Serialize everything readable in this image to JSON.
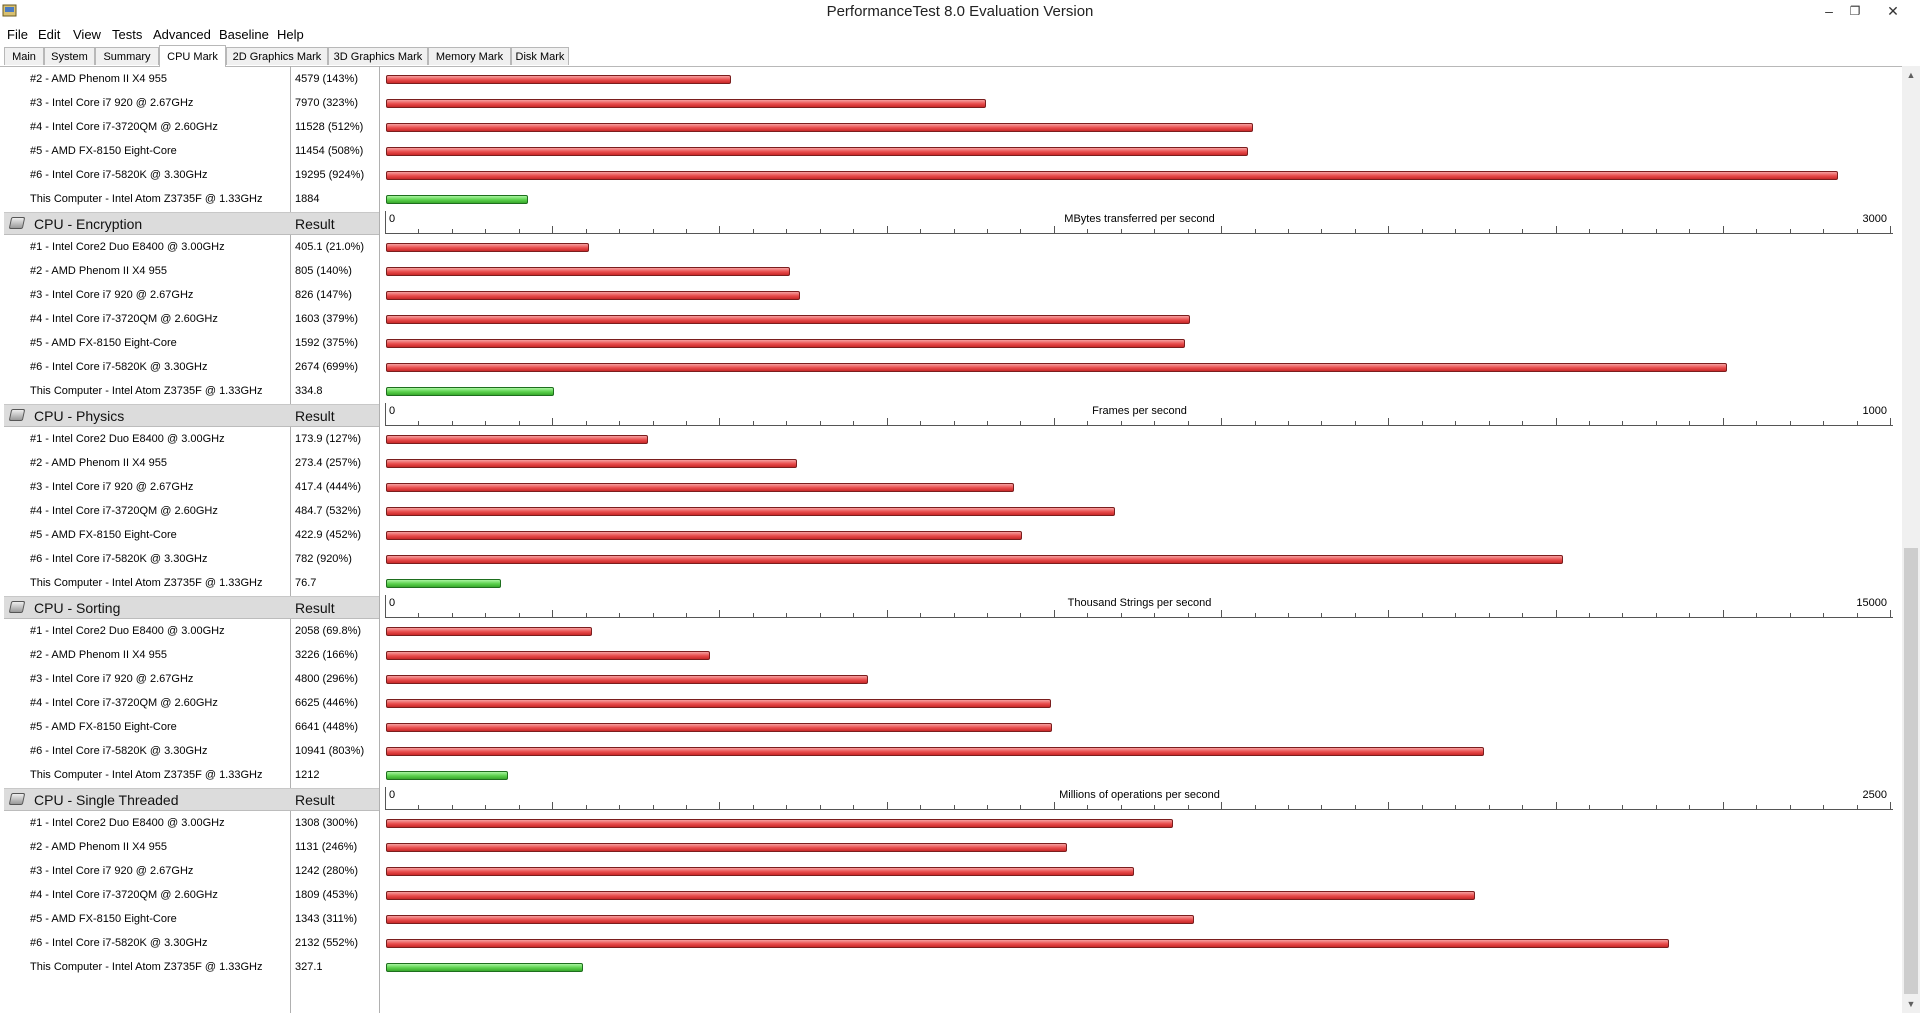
{
  "window": {
    "title": "PerformanceTest 8.0 Evaluation Version",
    "minimize": "–",
    "restore": "❐",
    "close": "✕"
  },
  "menu": [
    "File",
    "Edit",
    "View",
    "Tests",
    "Advanced",
    "Baseline",
    "Help"
  ],
  "tabs": [
    "Main",
    "System",
    "Summary",
    "CPU Mark",
    "2D Graphics Mark",
    "3D Graphics Mark",
    "Memory Mark",
    "Disk Mark"
  ],
  "active_tab": "CPU Mark",
  "colors": {
    "comparison_bar": "#e84b4b",
    "this_computer_bar": "#5ad04b",
    "section_header": "#dcdcdc"
  },
  "top_rows": [
    {
      "name": "#2 - AMD Phenom II X4 955",
      "result": "4579 (143%)",
      "value": 4579
    },
    {
      "name": "#3 - Intel Core i7 920 @ 2.67GHz",
      "result": "7970 (323%)",
      "value": 7970
    },
    {
      "name": "#4 - Intel Core i7-3720QM @ 2.60GHz",
      "result": "11528 (512%)",
      "value": 11528
    },
    {
      "name": "#5 - AMD FX-8150 Eight-Core",
      "result": "11454 (508%)",
      "value": 11454
    },
    {
      "name": "#6 - Intel Core i7-5820K @ 3.30GHz",
      "result": "19295 (924%)",
      "value": 19295
    },
    {
      "name": "This Computer - Intel Atom Z3735F @ 1.33GHz",
      "result": "1884",
      "value": 1884,
      "self": true
    }
  ],
  "top_scale_max": 20000,
  "sections": [
    {
      "title": "CPU - Encryption",
      "result_label": "Result",
      "axis": {
        "min": "0",
        "max": "3000",
        "unit": "MBytes transferred per second"
      },
      "scale_max": 3000,
      "rows": [
        {
          "name": "#1 - Intel Core2 Duo E8400 @ 3.00GHz",
          "result": "405.1 (21.0%)",
          "value": 405.1
        },
        {
          "name": "#2 - AMD Phenom II X4 955",
          "result": "805 (140%)",
          "value": 805
        },
        {
          "name": "#3 - Intel Core i7 920 @ 2.67GHz",
          "result": "826 (147%)",
          "value": 826
        },
        {
          "name": "#4 - Intel Core i7-3720QM @ 2.60GHz",
          "result": "1603 (379%)",
          "value": 1603
        },
        {
          "name": "#5 - AMD FX-8150 Eight-Core",
          "result": "1592 (375%)",
          "value": 1592
        },
        {
          "name": "#6 - Intel Core i7-5820K @ 3.30GHz",
          "result": "2674 (699%)",
          "value": 2674
        },
        {
          "name": "This Computer - Intel Atom Z3735F @ 1.33GHz",
          "result": "334.8",
          "value": 334.8,
          "self": true
        }
      ]
    },
    {
      "title": "CPU - Physics",
      "result_label": "Result",
      "axis": {
        "min": "0",
        "max": "1000",
        "unit": "Frames per second"
      },
      "scale_max": 1000,
      "rows": [
        {
          "name": "#1 - Intel Core2 Duo E8400 @ 3.00GHz",
          "result": "173.9 (127%)",
          "value": 173.9
        },
        {
          "name": "#2 - AMD Phenom II X4 955",
          "result": "273.4 (257%)",
          "value": 273.4
        },
        {
          "name": "#3 - Intel Core i7 920 @ 2.67GHz",
          "result": "417.4 (444%)",
          "value": 417.4
        },
        {
          "name": "#4 - Intel Core i7-3720QM @ 2.60GHz",
          "result": "484.7 (532%)",
          "value": 484.7
        },
        {
          "name": "#5 - AMD FX-8150 Eight-Core",
          "result": "422.9 (452%)",
          "value": 422.9
        },
        {
          "name": "#6 - Intel Core i7-5820K @ 3.30GHz",
          "result": "782 (920%)",
          "value": 782
        },
        {
          "name": "This Computer - Intel Atom Z3735F @ 1.33GHz",
          "result": "76.7",
          "value": 76.7,
          "self": true
        }
      ]
    },
    {
      "title": "CPU - Sorting",
      "result_label": "Result",
      "axis": {
        "min": "0",
        "max": "15000",
        "unit": "Thousand Strings per second"
      },
      "scale_max": 15000,
      "rows": [
        {
          "name": "#1 - Intel Core2 Duo E8400 @ 3.00GHz",
          "result": "2058 (69.8%)",
          "value": 2058
        },
        {
          "name": "#2 - AMD Phenom II X4 955",
          "result": "3226 (166%)",
          "value": 3226
        },
        {
          "name": "#3 - Intel Core i7 920 @ 2.67GHz",
          "result": "4800 (296%)",
          "value": 4800
        },
        {
          "name": "#4 - Intel Core i7-3720QM @ 2.60GHz",
          "result": "6625 (446%)",
          "value": 6625
        },
        {
          "name": "#5 - AMD FX-8150 Eight-Core",
          "result": "6641 (448%)",
          "value": 6641
        },
        {
          "name": "#6 - Intel Core i7-5820K @ 3.30GHz",
          "result": "10941 (803%)",
          "value": 10941
        },
        {
          "name": "This Computer - Intel Atom Z3735F @ 1.33GHz",
          "result": "1212",
          "value": 1212,
          "self": true
        }
      ]
    },
    {
      "title": "CPU - Single Threaded",
      "result_label": "Result",
      "axis": {
        "min": "0",
        "max": "2500",
        "unit": "Millions of operations per second"
      },
      "scale_max": 2500,
      "rows": [
        {
          "name": "#1 - Intel Core2 Duo E8400 @ 3.00GHz",
          "result": "1308 (300%)",
          "value": 1308
        },
        {
          "name": "#2 - AMD Phenom II X4 955",
          "result": "1131 (246%)",
          "value": 1131
        },
        {
          "name": "#3 - Intel Core i7 920 @ 2.67GHz",
          "result": "1242 (280%)",
          "value": 1242
        },
        {
          "name": "#4 - Intel Core i7-3720QM @ 2.60GHz",
          "result": "1809 (453%)",
          "value": 1809
        },
        {
          "name": "#5 - AMD FX-8150 Eight-Core",
          "result": "1343 (311%)",
          "value": 1343
        },
        {
          "name": "#6 - Intel Core i7-5820K @ 3.30GHz",
          "result": "2132 (552%)",
          "value": 2132
        },
        {
          "name": "This Computer - Intel Atom Z3735F @ 1.33GHz",
          "result": "327.1",
          "value": 327.1,
          "self": true
        }
      ]
    }
  ],
  "scroll": {
    "up_icon": "▲",
    "down_icon": "▼"
  }
}
